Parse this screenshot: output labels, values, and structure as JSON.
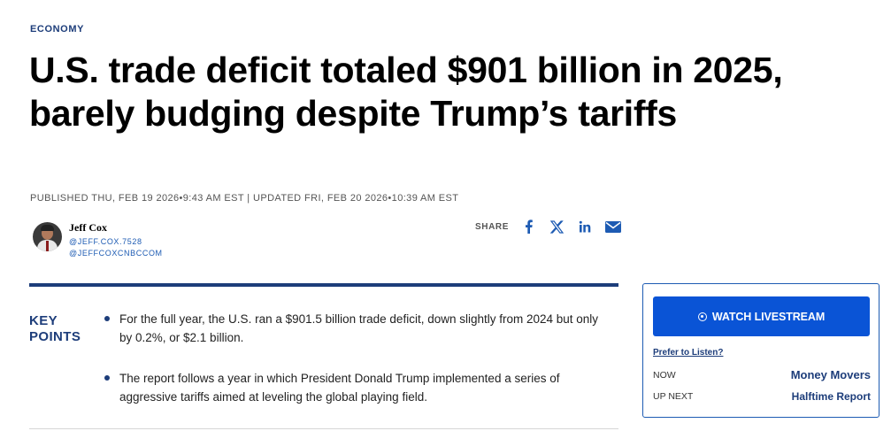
{
  "article": {
    "section": "ECONOMY",
    "headline": "U.S. trade deficit totaled $901 billion in 2025, barely budging despite Trump’s tariffs",
    "published": "PUBLISHED THU, FEB 19 2026•9:43 AM EST",
    "separator": " | ",
    "updated": "UPDATED FRI, FEB 20 2026•10:39 AM EST"
  },
  "author": {
    "name": "Jeff Cox",
    "handle_1": "@JEFF.COX.7528",
    "handle_2": "@JEFFCOXCNBCCOM"
  },
  "share": {
    "label": "SHARE",
    "icons": [
      "facebook-icon",
      "x-icon",
      "linkedin-icon",
      "email-icon"
    ]
  },
  "key_points": {
    "title_line_1": "KEY",
    "title_line_2": "POINTS",
    "items": [
      "For the full year, the U.S. ran a $901.5 billion trade deficit, down slightly from 2024 but only by 0.2%, or $2.1 billion.",
      "The report follows a year in which President Donald Trump implemented a series of aggressive tariffs aimed at leveling the global playing field."
    ]
  },
  "live_panel": {
    "watch_label": "WATCH LIVESTREAM",
    "listen_label": "Prefer to Listen?",
    "now_label": "NOW",
    "now_show": "Money Movers",
    "next_label": "UP NEXT",
    "next_show": "Halftime Report"
  },
  "colors": {
    "brand_navy": "#1d3d7a",
    "button_blue": "#0a54d6",
    "link_blue": "#1d5bb3"
  }
}
